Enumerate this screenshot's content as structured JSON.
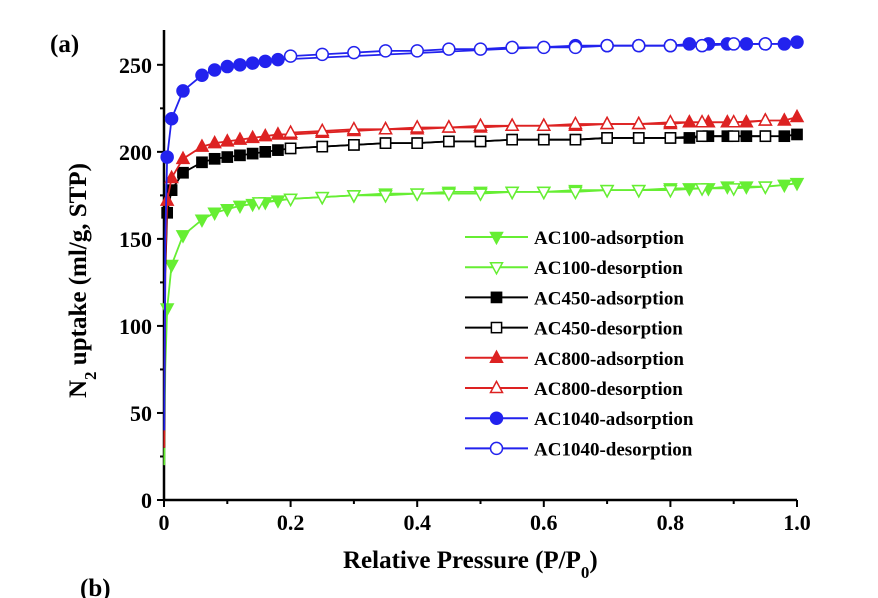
{
  "panel_labels": {
    "top": "(a)",
    "bottom": "(b)"
  },
  "chart_data": {
    "type": "scatter",
    "title": "",
    "xlabel_main": "Relative Pressure (P/P",
    "xlabel_sub": "0",
    "xlabel_end": ")",
    "ylabel_pre": "N",
    "ylabel_sub": "2",
    "ylabel_post": " uptake (ml/g, STP)",
    "xlim": [
      0,
      1.0
    ],
    "ylim": [
      0,
      270
    ],
    "xticks": [
      0,
      0.2,
      0.4,
      0.6,
      0.8,
      1.0
    ],
    "xtick_labels": [
      "0",
      "0.2",
      "0.4",
      "0.6",
      "0.8",
      "1.0"
    ],
    "yticks": [
      0,
      50,
      100,
      150,
      200,
      250
    ],
    "ytick_labels": [
      "0",
      "50",
      "100",
      "150",
      "200",
      "250"
    ],
    "legend_position": "center-right",
    "series": [
      {
        "name": "AC100-adsorption",
        "color": "#66ee33",
        "marker": "triangle-down",
        "filled": true,
        "x": [
          0.0005,
          0.002,
          0.005,
          0.012,
          0.03,
          0.06,
          0.08,
          0.1,
          0.12,
          0.14,
          0.16,
          0.18,
          0.2,
          0.25,
          0.3,
          0.35,
          0.4,
          0.45,
          0.5,
          0.55,
          0.6,
          0.65,
          0.7,
          0.75,
          0.8,
          0.83,
          0.86,
          0.89,
          0.92,
          0.95,
          0.98,
          1.0
        ],
        "y": [
          20,
          75,
          110,
          135,
          152,
          161,
          165,
          167,
          169,
          170,
          171,
          172,
          173,
          174,
          175,
          176,
          176,
          177,
          177,
          177,
          177,
          178,
          178,
          178,
          179,
          179,
          179,
          180,
          180,
          180,
          181,
          182
        ]
      },
      {
        "name": "AC100-desorption",
        "color": "#66ee33",
        "marker": "triangle-down",
        "filled": false,
        "x": [
          0.95,
          0.9,
          0.85,
          0.8,
          0.75,
          0.7,
          0.65,
          0.6,
          0.55,
          0.5,
          0.45,
          0.4,
          0.35,
          0.3,
          0.25,
          0.2,
          0.15
        ],
        "y": [
          180,
          179,
          179,
          178,
          178,
          178,
          177,
          177,
          177,
          176,
          176,
          176,
          175,
          175,
          174,
          173,
          171
        ]
      },
      {
        "name": "AC450-adsorption",
        "color": "#000000",
        "marker": "square",
        "filled": true,
        "x": [
          0.0005,
          0.002,
          0.005,
          0.012,
          0.03,
          0.06,
          0.08,
          0.1,
          0.12,
          0.14,
          0.16,
          0.18,
          0.2,
          0.25,
          0.3,
          0.35,
          0.4,
          0.45,
          0.5,
          0.55,
          0.6,
          0.65,
          0.7,
          0.75,
          0.8,
          0.83,
          0.86,
          0.89,
          0.92,
          0.95,
          0.98,
          1.0
        ],
        "y": [
          30,
          130,
          165,
          178,
          188,
          194,
          196,
          197,
          198,
          199,
          200,
          201,
          202,
          203,
          204,
          205,
          205,
          206,
          206,
          207,
          207,
          207,
          208,
          208,
          208,
          208,
          209,
          209,
          209,
          209,
          209,
          210
        ]
      },
      {
        "name": "AC450-desorption",
        "color": "#000000",
        "marker": "square",
        "filled": false,
        "x": [
          0.95,
          0.9,
          0.85,
          0.8,
          0.75,
          0.7,
          0.65,
          0.6,
          0.55,
          0.5,
          0.45,
          0.4,
          0.35,
          0.3,
          0.25,
          0.2
        ],
        "y": [
          209,
          209,
          209,
          208,
          208,
          208,
          207,
          207,
          207,
          206,
          206,
          205,
          205,
          204,
          203,
          202
        ]
      },
      {
        "name": "AC800-adsorption",
        "color": "#dd2222",
        "marker": "triangle-up",
        "filled": true,
        "x": [
          0.0005,
          0.002,
          0.005,
          0.012,
          0.03,
          0.06,
          0.08,
          0.1,
          0.12,
          0.14,
          0.16,
          0.18,
          0.2,
          0.25,
          0.3,
          0.35,
          0.4,
          0.45,
          0.5,
          0.55,
          0.6,
          0.65,
          0.7,
          0.75,
          0.8,
          0.83,
          0.86,
          0.89,
          0.92,
          0.95,
          0.98,
          1.0
        ],
        "y": [
          30,
          135,
          172,
          185,
          196,
          203,
          205,
          206,
          207,
          208,
          209,
          210,
          210,
          211,
          212,
          213,
          213,
          214,
          214,
          215,
          215,
          215,
          216,
          216,
          216,
          217,
          217,
          217,
          217,
          218,
          218,
          220
        ]
      },
      {
        "name": "AC800-desorption",
        "color": "#dd2222",
        "marker": "triangle-up",
        "filled": false,
        "x": [
          0.95,
          0.9,
          0.85,
          0.8,
          0.75,
          0.7,
          0.65,
          0.6,
          0.55,
          0.5,
          0.45,
          0.4,
          0.35,
          0.3,
          0.25,
          0.2
        ],
        "y": [
          218,
          217,
          217,
          217,
          216,
          216,
          216,
          215,
          215,
          215,
          214,
          214,
          213,
          213,
          212,
          211
        ]
      },
      {
        "name": "AC1040-adsorption",
        "color": "#2222ee",
        "marker": "circle",
        "filled": true,
        "x": [
          0.0005,
          0.002,
          0.005,
          0.012,
          0.03,
          0.06,
          0.08,
          0.1,
          0.12,
          0.14,
          0.16,
          0.18,
          0.65,
          0.7,
          0.75,
          0.8,
          0.83,
          0.86,
          0.89,
          0.92,
          0.95,
          0.98,
          1.0
        ],
        "y": [
          40,
          150,
          197,
          219,
          235,
          244,
          247,
          249,
          250,
          251,
          252,
          253,
          261,
          261,
          261,
          261,
          262,
          262,
          262,
          262,
          262,
          262,
          263
        ]
      },
      {
        "name": "AC1040-desorption",
        "color": "#2222ee",
        "marker": "circle",
        "filled": false,
        "x": [
          0.95,
          0.9,
          0.85,
          0.8,
          0.75,
          0.7,
          0.65,
          0.6,
          0.55,
          0.5,
          0.45,
          0.4,
          0.35,
          0.3,
          0.25,
          0.2
        ],
        "y": [
          262,
          262,
          261,
          261,
          261,
          261,
          260,
          260,
          260,
          259,
          259,
          258,
          258,
          257,
          256,
          255
        ]
      }
    ]
  }
}
